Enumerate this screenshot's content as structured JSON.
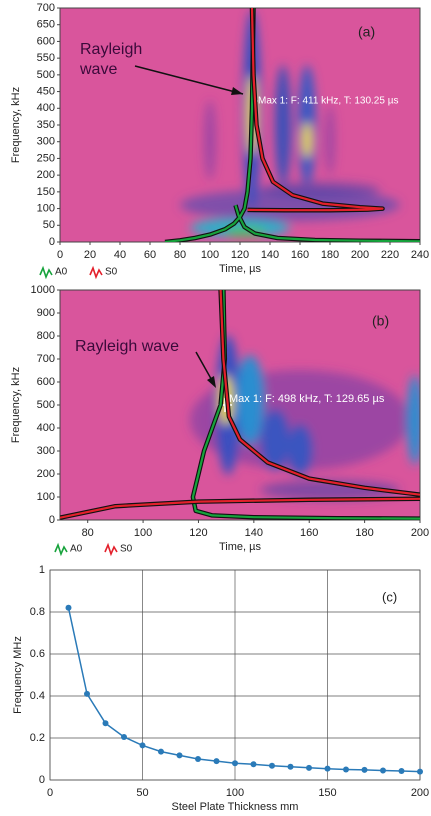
{
  "chart_data": [
    {
      "type": "spectrogram",
      "xlabel": "Time, µs",
      "ylabel": "Frequency, kHz",
      "xlim": [
        0,
        240
      ],
      "ylim": [
        0,
        700
      ],
      "xticks": [
        0,
        20,
        40,
        60,
        80,
        100,
        120,
        140,
        160,
        180,
        200,
        220,
        240
      ],
      "yticks": [
        0,
        50,
        100,
        150,
        200,
        250,
        300,
        350,
        400,
        450,
        500,
        550,
        600,
        650,
        700
      ],
      "series": [
        {
          "name": "A0",
          "color": "#17a33c",
          "x": [
            70,
            80,
            90,
            100,
            110,
            116,
            120,
            123,
            125,
            127,
            128,
            129,
            null,
            117,
            119,
            123,
            130,
            145,
            170,
            200,
            240
          ],
          "values": [
            0,
            5,
            12,
            22,
            38,
            55,
            75,
            100,
            150,
            250,
            400,
            700,
            null,
            110,
            80,
            45,
            25,
            12,
            6,
            4,
            2
          ]
        },
        {
          "name": "S0",
          "color": "#e3202b",
          "x": [
            128,
            129,
            131,
            135,
            142,
            155,
            175,
            200,
            215,
            205,
            180,
            150,
            125
          ],
          "values": [
            700,
            500,
            350,
            250,
            180,
            140,
            115,
            104,
            100,
            97,
            95,
            95,
            96
          ]
        }
      ],
      "annotations": [
        "Rayleigh",
        "wave",
        "Max 1: F: 411 kHz, T: 130.25 µs",
        "(a)"
      ]
    },
    {
      "type": "spectrogram",
      "xlabel": "Time, µs",
      "ylabel": "Frequency, kHz",
      "xlim": [
        70,
        200
      ],
      "ylim": [
        0,
        1000
      ],
      "xticks": [
        80,
        100,
        120,
        140,
        160,
        180,
        200
      ],
      "yticks": [
        0,
        100,
        200,
        300,
        400,
        500,
        600,
        700,
        800,
        900,
        1000
      ],
      "series": [
        {
          "name": "A0",
          "color": "#17a33c",
          "x": [
            129,
            129.5,
            128,
            125,
            122,
            120,
            118,
            119,
            125,
            140,
            170,
            200
          ],
          "values": [
            1000,
            700,
            500,
            400,
            300,
            200,
            100,
            40,
            20,
            12,
            8,
            6
          ]
        },
        {
          "name": "S0",
          "color": "#e3202b",
          "x": [
            128,
            129,
            131,
            135,
            145,
            160,
            180,
            200,
            null,
            70,
            90,
            120,
            160,
            200
          ],
          "values": [
            1000,
            700,
            450,
            350,
            250,
            180,
            140,
            110,
            null,
            10,
            60,
            80,
            88,
            92
          ]
        }
      ],
      "annotations": [
        "Rayleigh wave",
        "Max 1: F: 498 kHz, T: 129.65 µs",
        "(b)"
      ]
    },
    {
      "type": "line",
      "xlabel": "Steel Plate Thickness  mm",
      "ylabel": "Frequency MHz",
      "xlim": [
        0,
        200
      ],
      "ylim": [
        0,
        1
      ],
      "xticks": [
        0,
        50,
        100,
        150,
        200
      ],
      "yticks": [
        0,
        0.2,
        0.4,
        0.6,
        0.8,
        1
      ],
      "grid": true,
      "series": [
        {
          "color": "#2a7ab8",
          "x": [
            10,
            20,
            30,
            40,
            50,
            60,
            70,
            80,
            90,
            100,
            110,
            120,
            130,
            140,
            150,
            160,
            170,
            180,
            190,
            200
          ],
          "values": [
            0.82,
            0.41,
            0.27,
            0.205,
            0.165,
            0.135,
            0.117,
            0.1,
            0.09,
            0.08,
            0.075,
            0.068,
            0.063,
            0.058,
            0.054,
            0.05,
            0.048,
            0.045,
            0.043,
            0.04
          ]
        }
      ],
      "annotations": [
        "(c)"
      ]
    }
  ]
}
